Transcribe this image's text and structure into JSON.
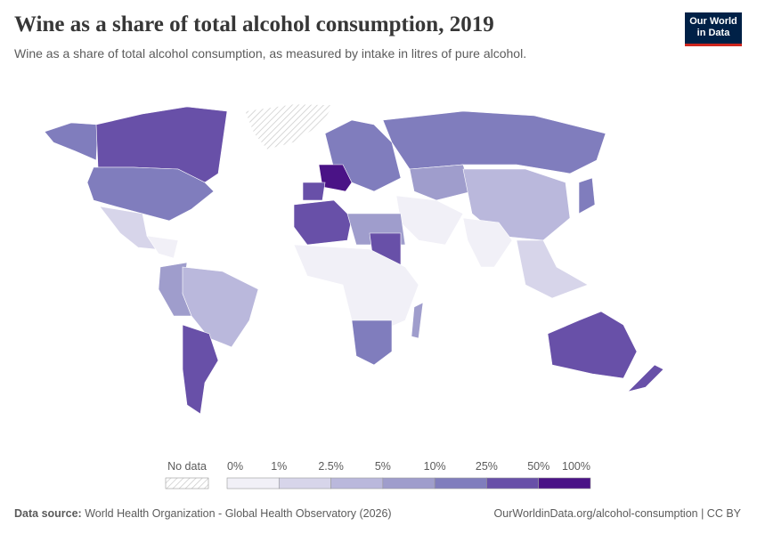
{
  "header": {
    "title": "Wine as a share of total alcohol consumption, 2019",
    "subtitle": "Wine as a share of total alcohol consumption, as measured by intake in litres of pure alcohol."
  },
  "logo": {
    "line1": "Our World",
    "line2": "in Data"
  },
  "legend": {
    "no_data": "No data",
    "ticks": [
      "0%",
      "1%",
      "2.5%",
      "5%",
      "10%",
      "25%",
      "50%",
      "100%"
    ],
    "colors": [
      "#f1f0f7",
      "#d7d5ea",
      "#bab8dc",
      "#9f9dcc",
      "#807dbd",
      "#6850a8",
      "#4a1386"
    ]
  },
  "footer": {
    "source_label": "Data source:",
    "source": "World Health Organization - Global Health Observatory (2026)",
    "url": "OurWorldinData.org/alcohol-consumption | CC BY"
  }
}
